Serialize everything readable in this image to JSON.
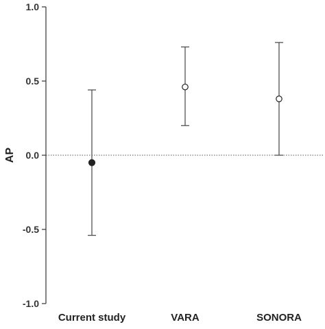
{
  "chart_data": {
    "type": "scatter",
    "title": "",
    "xlabel": "",
    "ylabel": "AP",
    "ylim": [
      -1.0,
      1.0
    ],
    "yticks": [
      "1.0",
      "0.5",
      "0.0",
      "-0.5",
      "-1.0"
    ],
    "ytick_values": [
      1.0,
      0.5,
      0.0,
      -0.5,
      -1.0
    ],
    "categories": [
      "Current study",
      "VARA",
      "SONORA"
    ],
    "points": [
      {
        "category": "Current study",
        "value": -0.05,
        "lower": -0.54,
        "upper": 0.44,
        "marker": "filled-circle"
      },
      {
        "category": "VARA",
        "value": 0.46,
        "lower": 0.2,
        "upper": 0.73,
        "marker": "open-circle"
      },
      {
        "category": "SONORA",
        "value": 0.38,
        "lower": 0.0,
        "upper": 0.76,
        "marker": "open-circle"
      }
    ],
    "reference_line": {
      "y": 0.0,
      "style": "dotted"
    },
    "grid": false,
    "legend": "none",
    "colors": {
      "axis": "#333333",
      "marker": "#222222",
      "errorbar": "#444444"
    }
  }
}
